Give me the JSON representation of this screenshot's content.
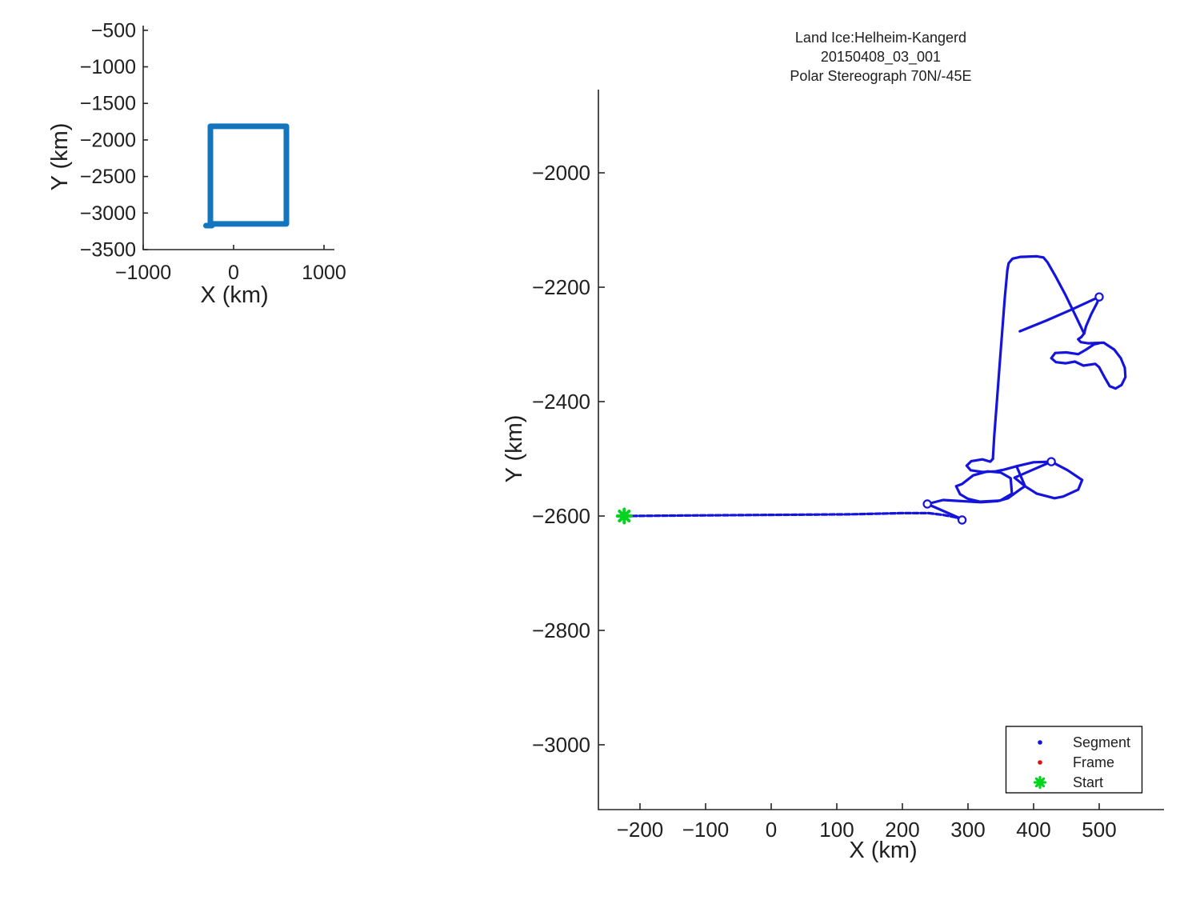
{
  "figure": {
    "background": "#ffffff",
    "title_lines": [
      "Land Ice:Helheim-Kangerd",
      "20150408_03_001",
      "Polar Stereograph 70N/-45E"
    ],
    "colors": {
      "track": "#1414dd",
      "coverage_box": "#1375bd",
      "start_marker": "#00d41e",
      "frame_marker": "#dd1111",
      "axis": "#262626",
      "text": "#202020",
      "legend_border": "#000000"
    },
    "legend": {
      "position": "southeast",
      "items": [
        {
          "label": "Segment",
          "marker": "dot",
          "color": "#1414dd"
        },
        {
          "label": "Frame",
          "marker": "dot",
          "color": "#dd1111"
        },
        {
          "label": "Start",
          "marker": "star",
          "color": "#00d41e"
        }
      ]
    }
  },
  "chart_data": [
    {
      "id": "overview",
      "type": "line",
      "title": "",
      "xlabel": "X (km)",
      "ylabel": "Y (km)",
      "xlim": [
        -1000,
        1115
      ],
      "ylim": [
        -3500,
        -436
      ],
      "xticks": [
        -1000,
        0,
        1000
      ],
      "yticks": [
        -500,
        -1000,
        -1500,
        -2000,
        -2500,
        -3000,
        -3500
      ],
      "xtick_labels": [
        "−1000",
        "0",
        "1000"
      ],
      "ytick_labels": [
        "−500",
        "−1000",
        "−1500",
        "−2000",
        "−2500",
        "−3000",
        "−3500"
      ],
      "grid": false,
      "series": [
        {
          "name": "coverage-box",
          "points": [
            [
              -257,
              -1814
            ],
            [
              584,
              -1814
            ],
            [
              584,
              -3149
            ],
            [
              -257,
              -3149
            ],
            [
              -257,
              -1814
            ]
          ]
        },
        {
          "name": "coverage-box-tail",
          "points": [
            [
              -240,
              -3172
            ],
            [
              -305,
              -3172
            ]
          ]
        }
      ]
    },
    {
      "id": "track",
      "type": "line",
      "xlabel": "X (km)",
      "ylabel": "Y (km)",
      "xlim": [
        -263.4,
        598.8
      ],
      "ylim": [
        -3113.3,
        -1854.5
      ],
      "xticks": [
        -200,
        -100,
        0,
        100,
        200,
        300,
        400,
        500
      ],
      "yticks": [
        -2000,
        -2200,
        -2400,
        -2600,
        -2800,
        -3000
      ],
      "xtick_labels": [
        "−200",
        "−100",
        "0",
        "100",
        "200",
        "300",
        "400",
        "500"
      ],
      "ytick_labels": [
        "−2000",
        "−2200",
        "−2400",
        "−2600",
        "−2800",
        "−3000"
      ],
      "grid": false,
      "start_point": [
        -224,
        -2600
      ],
      "end_circles": [
        [
          291,
          -2607
        ],
        [
          238,
          -2579
        ],
        [
          427,
          -2505
        ],
        [
          500,
          -2217
        ]
      ],
      "segments": [
        {
          "name": "transit-line",
          "dashed": true,
          "points": [
            [
              -224,
              -2600
            ],
            [
              -120,
              -2599
            ],
            [
              0,
              -2598
            ],
            [
              120,
              -2597
            ],
            [
              200,
              -2595
            ],
            [
              240,
              -2595
            ],
            [
              262,
              -2598
            ],
            [
              280,
              -2602
            ],
            [
              291,
              -2607
            ]
          ]
        },
        {
          "name": "stub-line",
          "dashed": false,
          "points": [
            [
              238,
              -2579
            ],
            [
              256,
              -2588
            ],
            [
              274,
              -2597
            ],
            [
              290,
              -2605
            ]
          ]
        },
        {
          "name": "approach-diagonal",
          "dashed": false,
          "points": [
            [
              238,
              -2579
            ],
            [
              262,
              -2572
            ],
            [
              290,
              -2574
            ],
            [
              320,
              -2576
            ],
            [
              345,
              -2574
            ],
            [
              361,
              -2569
            ],
            [
              380,
              -2553
            ],
            [
              387,
              -2548
            ],
            [
              371,
              -2533
            ],
            [
              427,
              -2505
            ]
          ]
        },
        {
          "name": "east-loop",
          "dashed": false,
          "points": [
            [
              427,
              -2505
            ],
            [
              400,
              -2506
            ],
            [
              381,
              -2511
            ],
            [
              374,
              -2513
            ],
            [
              387,
              -2548
            ],
            [
              405,
              -2561
            ],
            [
              432,
              -2569
            ],
            [
              445,
              -2566
            ],
            [
              468,
              -2554
            ],
            [
              474,
              -2537
            ],
            [
              452,
              -2520
            ],
            [
              427,
              -2505
            ]
          ]
        },
        {
          "name": "north-link-oval",
          "dashed": false,
          "points": [
            [
              338,
              -2500
            ],
            [
              334,
              -2505
            ],
            [
              322,
              -2501
            ],
            [
              305,
              -2504
            ],
            [
              298,
              -2512
            ],
            [
              304,
              -2520
            ],
            [
              322,
              -2523
            ],
            [
              342,
              -2522
            ],
            [
              355,
              -2519
            ],
            [
              374,
              -2513
            ]
          ]
        },
        {
          "name": "west-loop",
          "dashed": false,
          "points": [
            [
              330,
              -2522
            ],
            [
              308,
              -2529
            ],
            [
              291,
              -2544
            ],
            [
              282,
              -2548
            ],
            [
              288,
              -2562
            ],
            [
              300,
              -2570
            ],
            [
              318,
              -2575
            ],
            [
              349,
              -2573
            ],
            [
              367,
              -2561
            ],
            [
              365,
              -2534
            ],
            [
              350,
              -2524
            ],
            [
              330,
              -2522
            ]
          ]
        },
        {
          "name": "north-leg",
          "dashed": false,
          "points": [
            [
              338,
              -2500
            ],
            [
              340,
              -2460
            ],
            [
              344,
              -2400
            ],
            [
              348,
              -2340
            ],
            [
              352,
              -2280
            ],
            [
              356,
              -2220
            ],
            [
              360,
              -2170
            ],
            [
              362,
              -2158
            ],
            [
              368,
              -2150
            ],
            [
              380,
              -2147
            ],
            [
              405,
              -2146
            ],
            [
              415,
              -2148
            ],
            [
              421,
              -2156
            ],
            [
              434,
              -2182
            ],
            [
              448,
              -2212
            ],
            [
              462,
              -2245
            ],
            [
              477,
              -2281
            ]
          ]
        },
        {
          "name": "cross-line",
          "dashed": false,
          "points": [
            [
              379,
              -2277
            ],
            [
              420,
              -2258
            ],
            [
              460,
              -2238
            ],
            [
              490,
              -2222
            ],
            [
              500,
              -2217
            ]
          ]
        },
        {
          "name": "circle-return",
          "dashed": false,
          "points": [
            [
              500,
              -2217
            ],
            [
              497,
              -2227
            ],
            [
              488,
              -2247
            ],
            [
              480,
              -2268
            ],
            [
              477,
              -2281
            ]
          ]
        },
        {
          "name": "boot-loop",
          "dashed": false,
          "points": [
            [
              477,
              -2281
            ],
            [
              473,
              -2287
            ],
            [
              468,
              -2291
            ],
            [
              472,
              -2296
            ],
            [
              483,
              -2298
            ],
            [
              507,
              -2297
            ],
            [
              523,
              -2309
            ],
            [
              533,
              -2324
            ],
            [
              539,
              -2341
            ],
            [
              540,
              -2357
            ],
            [
              534,
              -2371
            ],
            [
              525,
              -2377
            ],
            [
              516,
              -2373
            ],
            [
              508,
              -2357
            ],
            [
              500,
              -2340
            ],
            [
              494,
              -2334
            ],
            [
              476,
              -2337
            ],
            [
              463,
              -2330
            ],
            [
              449,
              -2333
            ],
            [
              434,
              -2331
            ],
            [
              427,
              -2324
            ],
            [
              433,
              -2315
            ],
            [
              450,
              -2314
            ],
            [
              468,
              -2317
            ],
            [
              480,
              -2309
            ],
            [
              492,
              -2300
            ],
            [
              503,
              -2297
            ]
          ]
        }
      ]
    }
  ]
}
